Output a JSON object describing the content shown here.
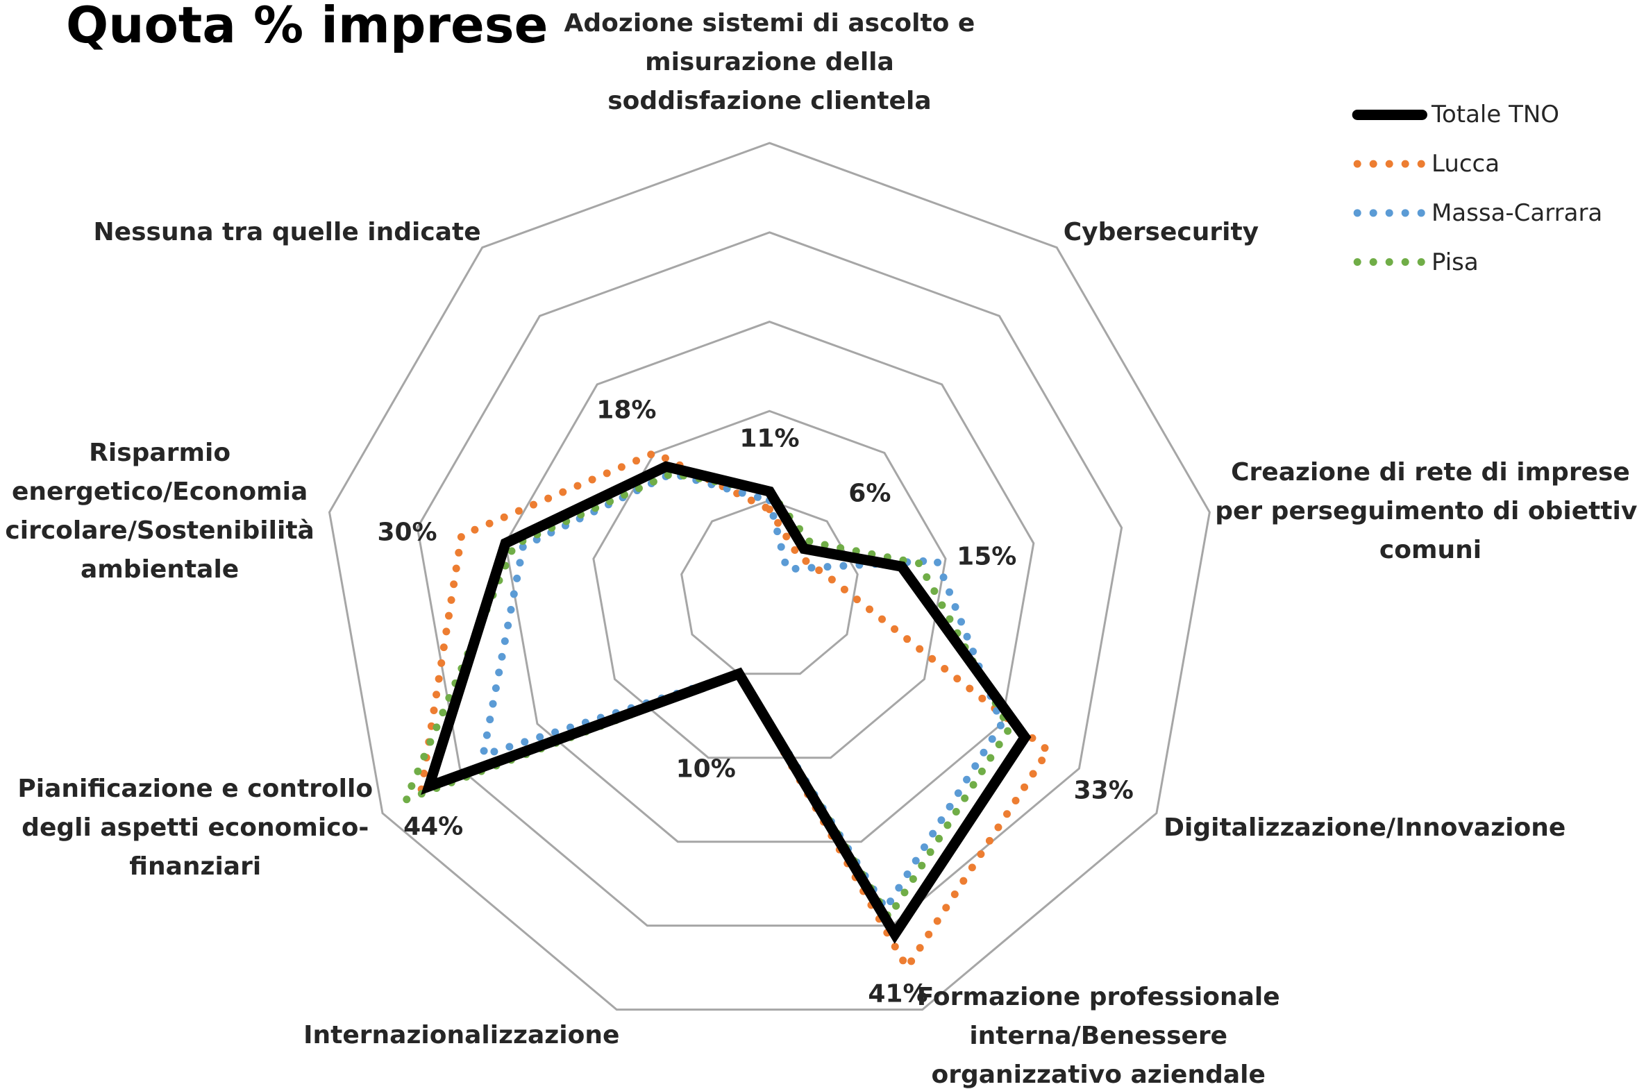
{
  "chart_data": {
    "type": "radar",
    "title": "Quota % imprese",
    "categories": [
      "Adozione sistemi di ascolto e misurazione della soddisfazione clientela",
      "Cybersecurity",
      "Creazione di rete di imprese per perseguimento di obiettivi comuni",
      "Digitalizzazione/Innovazione",
      "Formazione professionale interna/Benessere organizzativo aziendale",
      "Internazionalizzazione",
      "Pianificazione e controllo degli aspetti economico-finanziari",
      "Risparmio energetico/Economia circolare/Sostenibilità ambientale",
      "Nessuna tra quelle indicate"
    ],
    "series": [
      {
        "name": "Totale TNO",
        "color": "#000000",
        "values": [
          11,
          6,
          15,
          33,
          41,
          10,
          44,
          30,
          18
        ],
        "value_labels": [
          "11%",
          "6%",
          "15%",
          "33%",
          "41%",
          "10%",
          "44%",
          "30%",
          "18%"
        ]
      },
      {
        "name": "Lucca",
        "color": "#ed7d31",
        "values": [
          9,
          5,
          7,
          36,
          45,
          10,
          45,
          35,
          20
        ]
      },
      {
        "name": "Massa-Carrara",
        "color": "#5b9bd5",
        "values": [
          10,
          3,
          19,
          30,
          38,
          10,
          37,
          28,
          17
        ]
      },
      {
        "name": "Pisa",
        "color": "#70ad47",
        "values": [
          11,
          7,
          17,
          31,
          39,
          10,
          47,
          29,
          17
        ]
      }
    ],
    "ylim": [
      0,
      50
    ],
    "yticks": [
      0,
      10,
      20,
      30,
      40,
      50
    ],
    "grid": true,
    "legend": "top-right"
  }
}
